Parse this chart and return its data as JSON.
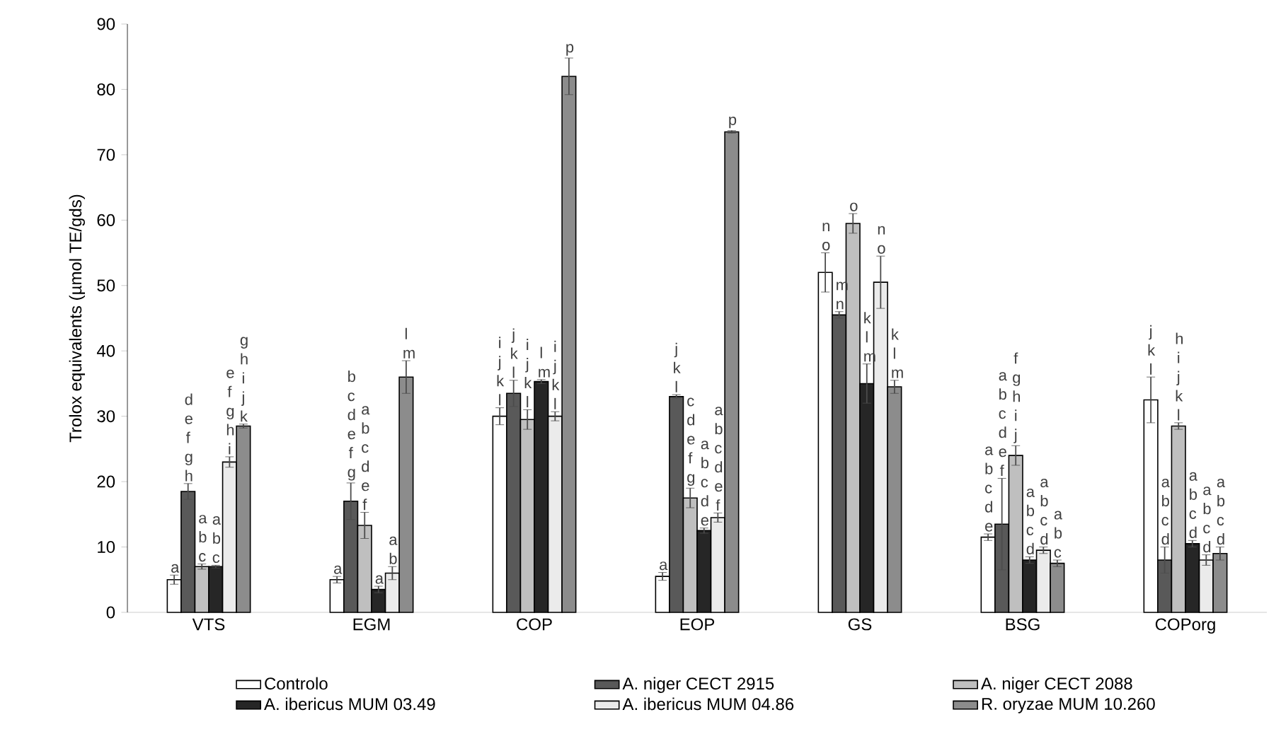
{
  "chart_data": {
    "type": "bar",
    "ylabel": "Trolox equivalents (µmol TE/gds)",
    "categories": [
      "VTS",
      "EGM",
      "COP",
      "EOP",
      "GS",
      "BSG",
      "COPorg"
    ],
    "series": [
      {
        "name": "Controlo",
        "color": "#ffffff",
        "values": [
          5,
          5,
          30,
          5.5,
          52,
          11.5,
          32.5
        ],
        "errors": [
          0.7,
          0.5,
          1.3,
          0.6,
          3,
          0.5,
          3.5
        ]
      },
      {
        "name": "A. niger CECT 2915",
        "color": "#595959",
        "values": [
          18.5,
          17,
          33.5,
          33,
          45.5,
          13.5,
          8
        ],
        "errors": [
          1.2,
          2.8,
          2,
          0.3,
          0.5,
          7,
          2
        ]
      },
      {
        "name": "A. niger CECT 2088",
        "color": "#bfbfbf",
        "values": [
          7,
          13.3,
          29.5,
          17.5,
          59.5,
          24,
          28.5
        ],
        "errors": [
          0.4,
          2,
          1.5,
          1.5,
          1.5,
          1.5,
          0.5
        ]
      },
      {
        "name": "A. ibericus MUM 03.49",
        "color": "#262626",
        "values": [
          7,
          3.5,
          35.3,
          12.5,
          35,
          8,
          10.5
        ],
        "errors": [
          0.2,
          0.5,
          0.3,
          0.4,
          3,
          0.5,
          0.5
        ]
      },
      {
        "name": "A. ibericus MUM 04.86",
        "color": "#ebebeb",
        "values": [
          23,
          6,
          30,
          14.5,
          50.5,
          9.5,
          8
        ],
        "errors": [
          0.8,
          1,
          0.7,
          0.7,
          4,
          0.5,
          0.8
        ]
      },
      {
        "name": "R. oryzae MUM 10.260",
        "color": "#8c8c8c",
        "values": [
          28.5,
          36,
          82,
          73.5,
          34.5,
          7.5,
          9
        ],
        "errors": [
          0.3,
          2.5,
          2.8,
          0.2,
          1,
          0.5,
          1
        ]
      }
    ],
    "ylim": [
      0,
      90
    ],
    "yticks": [
      0,
      10,
      20,
      30,
      40,
      50,
      60,
      70,
      80,
      90
    ],
    "legend": "bottom",
    "annotations": [
      "a",
      "d e f g h",
      "a b c",
      "a b c",
      "e f g h i",
      "g h i j k",
      "a",
      "b c d e f g",
      "a b c d e f",
      "a",
      "a b",
      "l m",
      "i j k l",
      "j k l",
      "i j k l",
      "l m",
      "i j k l",
      "p",
      "a",
      "j k l",
      "c d e f g",
      "a b c d e",
      "a b c d e f",
      "p",
      "n o",
      "m n",
      "o",
      "k l m",
      "n o",
      "k l m",
      "a b c d e",
      "a b c d e f",
      "f g h i j",
      "a b c d",
      "a b c d",
      "a b c",
      "j k l",
      "a b c d",
      "h i j k l",
      "a b c d",
      "a b c d",
      "a b c d"
    ]
  }
}
